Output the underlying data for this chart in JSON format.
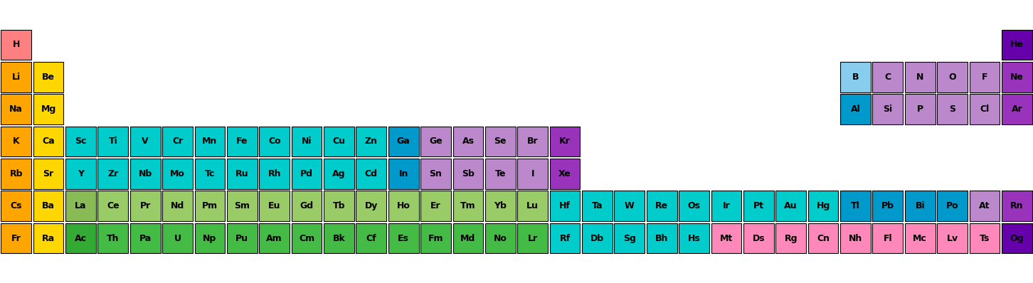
{
  "elements": [
    {
      "symbol": "H",
      "row": 0,
      "col": 0,
      "color": "#FF8080"
    },
    {
      "symbol": "He",
      "row": 0,
      "col": 31,
      "color": "#6600AA"
    },
    {
      "symbol": "Li",
      "row": 1,
      "col": 0,
      "color": "#FFA500"
    },
    {
      "symbol": "Be",
      "row": 1,
      "col": 1,
      "color": "#FFD700"
    },
    {
      "symbol": "B",
      "row": 1,
      "col": 26,
      "color": "#88CCEE"
    },
    {
      "symbol": "C",
      "row": 1,
      "col": 27,
      "color": "#BB88CC"
    },
    {
      "symbol": "N",
      "row": 1,
      "col": 28,
      "color": "#BB88CC"
    },
    {
      "symbol": "O",
      "row": 1,
      "col": 29,
      "color": "#BB88CC"
    },
    {
      "symbol": "F",
      "row": 1,
      "col": 30,
      "color": "#BB88CC"
    },
    {
      "symbol": "Ne",
      "row": 1,
      "col": 31,
      "color": "#9933BB"
    },
    {
      "symbol": "Na",
      "row": 2,
      "col": 0,
      "color": "#FFA500"
    },
    {
      "symbol": "Mg",
      "row": 2,
      "col": 1,
      "color": "#FFD700"
    },
    {
      "symbol": "Al",
      "row": 2,
      "col": 26,
      "color": "#0099CC"
    },
    {
      "symbol": "Si",
      "row": 2,
      "col": 27,
      "color": "#BB88CC"
    },
    {
      "symbol": "P",
      "row": 2,
      "col": 28,
      "color": "#BB88CC"
    },
    {
      "symbol": "S",
      "row": 2,
      "col": 29,
      "color": "#BB88CC"
    },
    {
      "symbol": "Cl",
      "row": 2,
      "col": 30,
      "color": "#BB88CC"
    },
    {
      "symbol": "Ar",
      "row": 2,
      "col": 31,
      "color": "#9933BB"
    },
    {
      "symbol": "K",
      "row": 3,
      "col": 0,
      "color": "#FFA500"
    },
    {
      "symbol": "Ca",
      "row": 3,
      "col": 1,
      "color": "#FFD700"
    },
    {
      "symbol": "Sc",
      "row": 3,
      "col": 2,
      "color": "#00CCCC"
    },
    {
      "symbol": "Ti",
      "row": 3,
      "col": 3,
      "color": "#00CCCC"
    },
    {
      "symbol": "V",
      "row": 3,
      "col": 4,
      "color": "#00CCCC"
    },
    {
      "symbol": "Cr",
      "row": 3,
      "col": 5,
      "color": "#00CCCC"
    },
    {
      "symbol": "Mn",
      "row": 3,
      "col": 6,
      "color": "#00CCCC"
    },
    {
      "symbol": "Fe",
      "row": 3,
      "col": 7,
      "color": "#00CCCC"
    },
    {
      "symbol": "Co",
      "row": 3,
      "col": 8,
      "color": "#00CCCC"
    },
    {
      "symbol": "Ni",
      "row": 3,
      "col": 9,
      "color": "#00CCCC"
    },
    {
      "symbol": "Cu",
      "row": 3,
      "col": 10,
      "color": "#00CCCC"
    },
    {
      "symbol": "Zn",
      "row": 3,
      "col": 11,
      "color": "#00CCCC"
    },
    {
      "symbol": "Ga",
      "row": 3,
      "col": 12,
      "color": "#0099CC"
    },
    {
      "symbol": "Ge",
      "row": 3,
      "col": 13,
      "color": "#BB88CC"
    },
    {
      "symbol": "As",
      "row": 3,
      "col": 14,
      "color": "#BB88CC"
    },
    {
      "symbol": "Se",
      "row": 3,
      "col": 15,
      "color": "#BB88CC"
    },
    {
      "symbol": "Br",
      "row": 3,
      "col": 16,
      "color": "#BB88CC"
    },
    {
      "symbol": "Kr",
      "row": 3,
      "col": 17,
      "color": "#9933BB"
    },
    {
      "symbol": "Rb",
      "row": 4,
      "col": 0,
      "color": "#FFA500"
    },
    {
      "symbol": "Sr",
      "row": 4,
      "col": 1,
      "color": "#FFD700"
    },
    {
      "symbol": "Y",
      "row": 4,
      "col": 2,
      "color": "#00CCCC"
    },
    {
      "symbol": "Zr",
      "row": 4,
      "col": 3,
      "color": "#00CCCC"
    },
    {
      "symbol": "Nb",
      "row": 4,
      "col": 4,
      "color": "#00CCCC"
    },
    {
      "symbol": "Mo",
      "row": 4,
      "col": 5,
      "color": "#00CCCC"
    },
    {
      "symbol": "Tc",
      "row": 4,
      "col": 6,
      "color": "#00CCCC"
    },
    {
      "symbol": "Ru",
      "row": 4,
      "col": 7,
      "color": "#00CCCC"
    },
    {
      "symbol": "Rh",
      "row": 4,
      "col": 8,
      "color": "#00CCCC"
    },
    {
      "symbol": "Pd",
      "row": 4,
      "col": 9,
      "color": "#00CCCC"
    },
    {
      "symbol": "Ag",
      "row": 4,
      "col": 10,
      "color": "#00CCCC"
    },
    {
      "symbol": "Cd",
      "row": 4,
      "col": 11,
      "color": "#00CCCC"
    },
    {
      "symbol": "In",
      "row": 4,
      "col": 12,
      "color": "#0099CC"
    },
    {
      "symbol": "Sn",
      "row": 4,
      "col": 13,
      "color": "#BB88CC"
    },
    {
      "symbol": "Sb",
      "row": 4,
      "col": 14,
      "color": "#BB88CC"
    },
    {
      "symbol": "Te",
      "row": 4,
      "col": 15,
      "color": "#BB88CC"
    },
    {
      "symbol": "I",
      "row": 4,
      "col": 16,
      "color": "#BB88CC"
    },
    {
      "symbol": "Xe",
      "row": 4,
      "col": 17,
      "color": "#9933BB"
    },
    {
      "symbol": "Cs",
      "row": 5,
      "col": 0,
      "color": "#FFA500"
    },
    {
      "symbol": "Ba",
      "row": 5,
      "col": 1,
      "color": "#FFD700"
    },
    {
      "symbol": "La",
      "row": 5,
      "col": 2,
      "color": "#88BB55"
    },
    {
      "symbol": "Ce",
      "row": 5,
      "col": 3,
      "color": "#99CC66"
    },
    {
      "symbol": "Pr",
      "row": 5,
      "col": 4,
      "color": "#99CC66"
    },
    {
      "symbol": "Nd",
      "row": 5,
      "col": 5,
      "color": "#99CC66"
    },
    {
      "symbol": "Pm",
      "row": 5,
      "col": 6,
      "color": "#99CC66"
    },
    {
      "symbol": "Sm",
      "row": 5,
      "col": 7,
      "color": "#99CC66"
    },
    {
      "symbol": "Eu",
      "row": 5,
      "col": 8,
      "color": "#99CC66"
    },
    {
      "symbol": "Gd",
      "row": 5,
      "col": 9,
      "color": "#99CC66"
    },
    {
      "symbol": "Tb",
      "row": 5,
      "col": 10,
      "color": "#99CC66"
    },
    {
      "symbol": "Dy",
      "row": 5,
      "col": 11,
      "color": "#99CC66"
    },
    {
      "symbol": "Ho",
      "row": 5,
      "col": 12,
      "color": "#99CC66"
    },
    {
      "symbol": "Er",
      "row": 5,
      "col": 13,
      "color": "#99CC66"
    },
    {
      "symbol": "Tm",
      "row": 5,
      "col": 14,
      "color": "#99CC66"
    },
    {
      "symbol": "Yb",
      "row": 5,
      "col": 15,
      "color": "#99CC66"
    },
    {
      "symbol": "Lu",
      "row": 5,
      "col": 16,
      "color": "#99CC66"
    },
    {
      "symbol": "Hf",
      "row": 5,
      "col": 17,
      "color": "#00CCCC"
    },
    {
      "symbol": "Ta",
      "row": 5,
      "col": 18,
      "color": "#00CCCC"
    },
    {
      "symbol": "W",
      "row": 5,
      "col": 19,
      "color": "#00CCCC"
    },
    {
      "symbol": "Re",
      "row": 5,
      "col": 20,
      "color": "#00CCCC"
    },
    {
      "symbol": "Os",
      "row": 5,
      "col": 21,
      "color": "#00CCCC"
    },
    {
      "symbol": "Ir",
      "row": 5,
      "col": 22,
      "color": "#00CCCC"
    },
    {
      "symbol": "Pt",
      "row": 5,
      "col": 23,
      "color": "#00CCCC"
    },
    {
      "symbol": "Au",
      "row": 5,
      "col": 24,
      "color": "#00CCCC"
    },
    {
      "symbol": "Hg",
      "row": 5,
      "col": 25,
      "color": "#00CCCC"
    },
    {
      "symbol": "Tl",
      "row": 5,
      "col": 26,
      "color": "#0099CC"
    },
    {
      "symbol": "Pb",
      "row": 5,
      "col": 27,
      "color": "#0099CC"
    },
    {
      "symbol": "Bi",
      "row": 5,
      "col": 28,
      "color": "#0099CC"
    },
    {
      "symbol": "Po",
      "row": 5,
      "col": 29,
      "color": "#0099CC"
    },
    {
      "symbol": "At",
      "row": 5,
      "col": 30,
      "color": "#BB88CC"
    },
    {
      "symbol": "Rn",
      "row": 5,
      "col": 31,
      "color": "#9933BB"
    },
    {
      "symbol": "Fr",
      "row": 6,
      "col": 0,
      "color": "#FFA500"
    },
    {
      "symbol": "Ra",
      "row": 6,
      "col": 1,
      "color": "#FFD700"
    },
    {
      "symbol": "Ac",
      "row": 6,
      "col": 2,
      "color": "#33AA33"
    },
    {
      "symbol": "Th",
      "row": 6,
      "col": 3,
      "color": "#44BB44"
    },
    {
      "symbol": "Pa",
      "row": 6,
      "col": 4,
      "color": "#44BB44"
    },
    {
      "symbol": "U",
      "row": 6,
      "col": 5,
      "color": "#44BB44"
    },
    {
      "symbol": "Np",
      "row": 6,
      "col": 6,
      "color": "#44BB44"
    },
    {
      "symbol": "Pu",
      "row": 6,
      "col": 7,
      "color": "#44BB44"
    },
    {
      "symbol": "Am",
      "row": 6,
      "col": 8,
      "color": "#44BB44"
    },
    {
      "symbol": "Cm",
      "row": 6,
      "col": 9,
      "color": "#44BB44"
    },
    {
      "symbol": "Bk",
      "row": 6,
      "col": 10,
      "color": "#44BB44"
    },
    {
      "symbol": "Cf",
      "row": 6,
      "col": 11,
      "color": "#44BB44"
    },
    {
      "symbol": "Es",
      "row": 6,
      "col": 12,
      "color": "#44BB44"
    },
    {
      "symbol": "Fm",
      "row": 6,
      "col": 13,
      "color": "#44BB44"
    },
    {
      "symbol": "Md",
      "row": 6,
      "col": 14,
      "color": "#44BB44"
    },
    {
      "symbol": "No",
      "row": 6,
      "col": 15,
      "color": "#44BB44"
    },
    {
      "symbol": "Lr",
      "row": 6,
      "col": 16,
      "color": "#44BB44"
    },
    {
      "symbol": "Rf",
      "row": 6,
      "col": 17,
      "color": "#00CCCC"
    },
    {
      "symbol": "Db",
      "row": 6,
      "col": 18,
      "color": "#00CCCC"
    },
    {
      "symbol": "Sg",
      "row": 6,
      "col": 19,
      "color": "#00CCCC"
    },
    {
      "symbol": "Bh",
      "row": 6,
      "col": 20,
      "color": "#00CCCC"
    },
    {
      "symbol": "Hs",
      "row": 6,
      "col": 21,
      "color": "#00CCCC"
    },
    {
      "symbol": "Mt",
      "row": 6,
      "col": 22,
      "color": "#FF88BB"
    },
    {
      "symbol": "Ds",
      "row": 6,
      "col": 23,
      "color": "#FF88BB"
    },
    {
      "symbol": "Rg",
      "row": 6,
      "col": 24,
      "color": "#FF88BB"
    },
    {
      "symbol": "Cn",
      "row": 6,
      "col": 25,
      "color": "#FF88BB"
    },
    {
      "symbol": "Nh",
      "row": 6,
      "col": 26,
      "color": "#FF88BB"
    },
    {
      "symbol": "Fl",
      "row": 6,
      "col": 27,
      "color": "#FF88BB"
    },
    {
      "symbol": "Mc",
      "row": 6,
      "col": 28,
      "color": "#FF88BB"
    },
    {
      "symbol": "Lv",
      "row": 6,
      "col": 29,
      "color": "#FF88BB"
    },
    {
      "symbol": "Ts",
      "row": 6,
      "col": 30,
      "color": "#FF88BB"
    },
    {
      "symbol": "Og",
      "row": 6,
      "col": 31,
      "color": "#6600AA"
    }
  ],
  "ncols": 32,
  "nrows": 7,
  "bg_color": "#FFFFFF",
  "border_color": "#000000",
  "text_color": "#000000",
  "font_size": 9
}
